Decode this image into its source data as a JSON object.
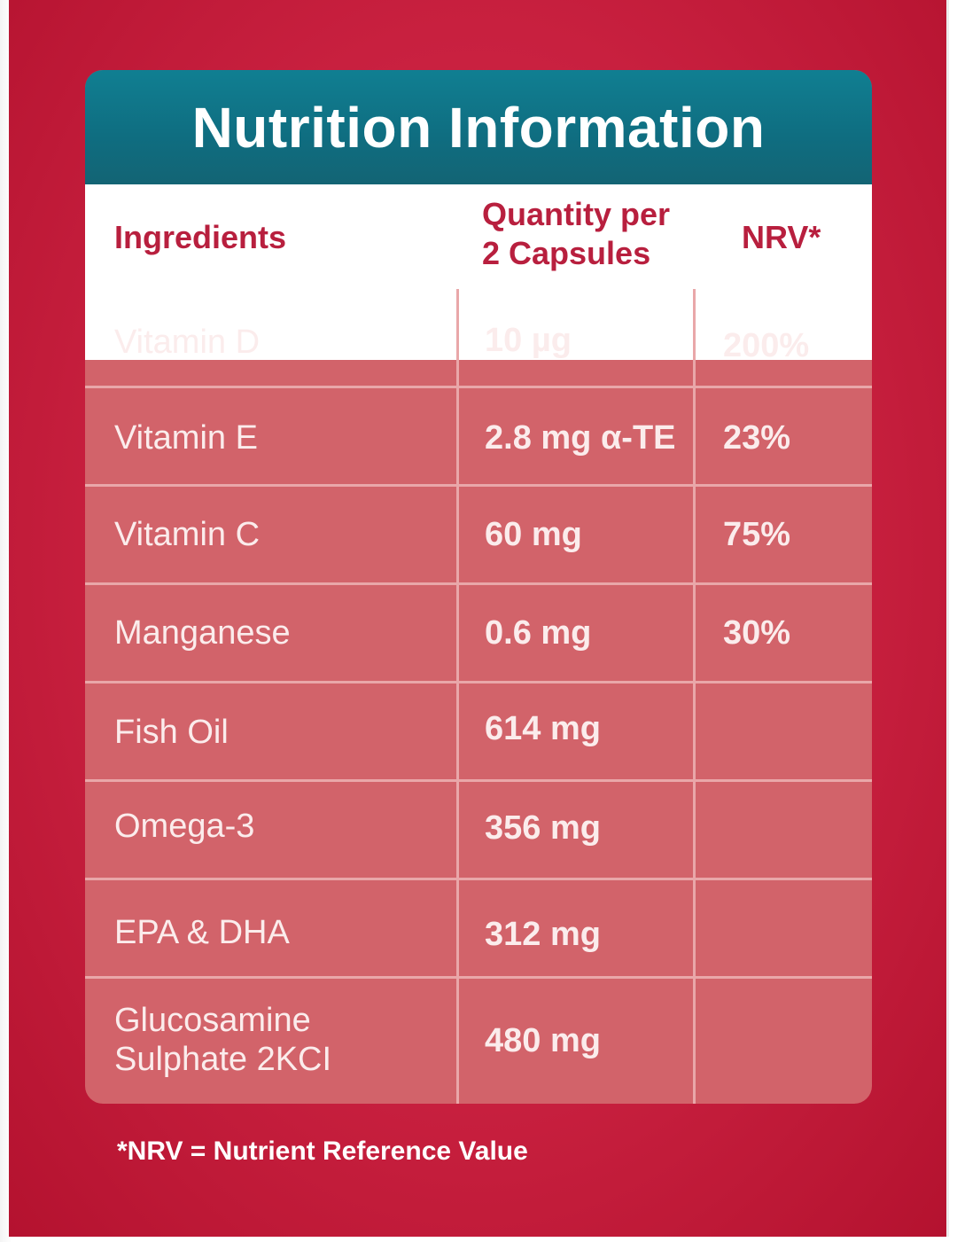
{
  "panel": {
    "title": "Nutrition Information",
    "headers": {
      "ingredients": "Ingredients",
      "quantity_line1": "Quantity per",
      "quantity_line2": "2 Capsules",
      "nrv": "NRV*"
    },
    "rows": [
      {
        "ingredient": "Vitamin D",
        "quantity": "10 µg",
        "nrv": "200%"
      },
      {
        "ingredient": "Vitamin E",
        "quantity": "2.8 mg α-TE",
        "nrv": "23%"
      },
      {
        "ingredient": "Vitamin C",
        "quantity": "60 mg",
        "nrv": "75%"
      },
      {
        "ingredient": "Manganese",
        "quantity": "0.6 mg",
        "nrv": "30%"
      },
      {
        "ingredient": "Fish Oil",
        "quantity": "614 mg",
        "nrv": ""
      },
      {
        "ingredient": "Omega-3",
        "quantity": "356 mg",
        "nrv": ""
      },
      {
        "ingredient": "EPA & DHA",
        "quantity": "312 mg",
        "nrv": ""
      },
      {
        "ingredient_line1": "Glucosamine",
        "ingredient_line2": "Sulphate 2KCI",
        "quantity": "480 mg",
        "nrv": ""
      }
    ]
  },
  "footnote": "*NRV = Nutrient Reference Value",
  "colors": {
    "background_red": "#c8203f",
    "title_teal": "#0f6d80",
    "header_text": "#b81f3e",
    "table_fill": "#d2636a",
    "grid_lines": "#e9a7a9"
  }
}
